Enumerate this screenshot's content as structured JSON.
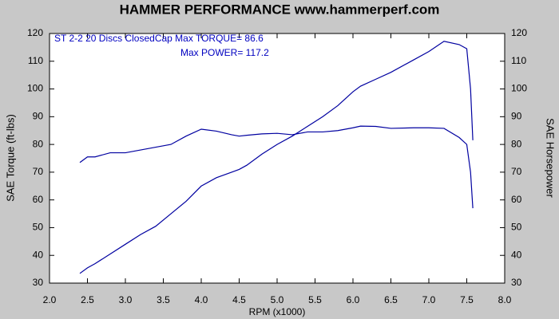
{
  "chart_data": {
    "type": "line",
    "title": "HAMMER PERFORMANCE www.hammerperf.com",
    "annotations": [
      "ST 2-2 20 Discs ClosedCap  Max TORQUE= 86.6",
      "Max POWER= 117.2"
    ],
    "xlabel": "RPM (x1000)",
    "ylabel": "SAE Torque (ft-lbs)",
    "y2label": "SAE Horsepower",
    "x": [
      2.4,
      2.5,
      2.6,
      2.8,
      3.0,
      3.2,
      3.4,
      3.6,
      3.8,
      4.0,
      4.2,
      4.4,
      4.5,
      4.6,
      4.8,
      5.0,
      5.2,
      5.4,
      5.6,
      5.8,
      6.0,
      6.1,
      6.3,
      6.5,
      6.8,
      7.0,
      7.2,
      7.4,
      7.5,
      7.55,
      7.58
    ],
    "series": [
      {
        "name": "SAE Torque (ft-lbs)",
        "color": "#0000a0",
        "values": [
          73.5,
          75.5,
          75.5,
          77,
          77,
          78,
          79,
          80,
          83,
          85.5,
          84.8,
          83.5,
          83,
          83.3,
          83.8,
          84,
          83.5,
          84.5,
          84.5,
          85,
          86,
          86.6,
          86.5,
          85.8,
          86,
          86,
          85.8,
          82.5,
          80,
          70,
          57
        ]
      },
      {
        "name": "SAE Horsepower",
        "color": "#0000a0",
        "axis": "y2",
        "values": [
          33.5,
          35.5,
          37,
          40.5,
          44,
          47.5,
          50.5,
          55,
          59.5,
          65,
          68,
          70,
          71,
          72.5,
          76.5,
          80,
          83,
          86.5,
          90,
          94,
          99,
          101,
          103.5,
          106,
          110.5,
          113.5,
          117.2,
          116,
          114.5,
          100,
          81.5
        ]
      }
    ],
    "xlim": [
      2,
      8
    ],
    "xticks": [
      {
        "value": 2,
        "label": "2.0"
      },
      2.5,
      {
        "value": 3,
        "label": "3.0"
      },
      3.5,
      {
        "value": 4,
        "label": "4.0"
      },
      4.5,
      {
        "value": 5,
        "label": "5.0"
      },
      5.5,
      {
        "value": 6,
        "label": "6.0"
      },
      6.5,
      {
        "value": 7,
        "label": "7.0"
      },
      7.5,
      {
        "value": 8,
        "label": "8.0"
      }
    ],
    "ylim": [
      30,
      120
    ],
    "yticks": [
      30,
      40,
      50,
      60,
      70,
      80,
      90,
      100,
      110,
      120
    ],
    "y2lim": [
      30,
      120
    ],
    "y2ticks": [
      30,
      40,
      50,
      60,
      70,
      80,
      90,
      100,
      110,
      120
    ]
  }
}
